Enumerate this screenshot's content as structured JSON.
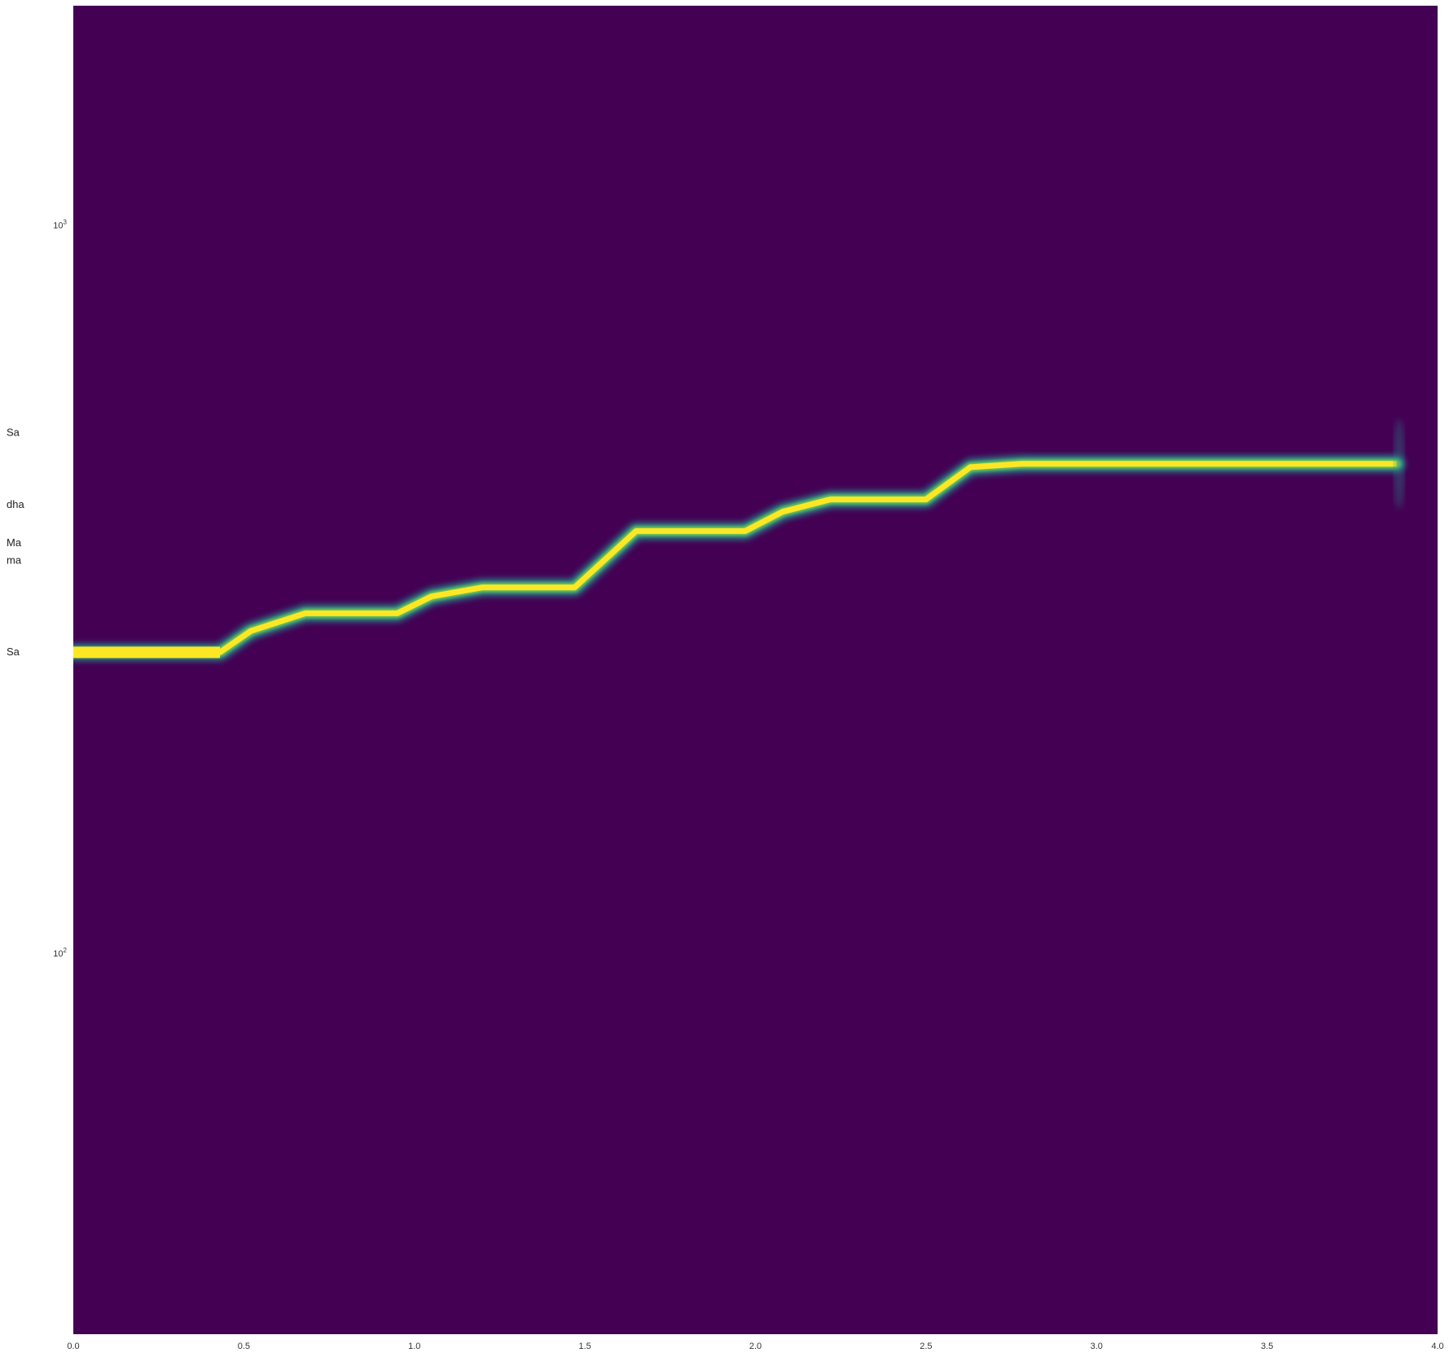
{
  "chart_data": {
    "type": "heatmap",
    "title": "",
    "xlabel": "",
    "ylabel": "",
    "xlim": [
      0.0,
      4.0
    ],
    "ylim": [
      30,
      2000
    ],
    "yscale": "log",
    "grid": false,
    "legend": "none",
    "colormap": "viridis",
    "colors": {
      "background": "#440154",
      "mid": "#21918c",
      "peak": "#fde725"
    },
    "x_ticks": [
      {
        "value": 0.0,
        "label": "0.0"
      },
      {
        "value": 0.5,
        "label": "0.5"
      },
      {
        "value": 1.0,
        "label": "1.0"
      },
      {
        "value": 1.5,
        "label": "1.5"
      },
      {
        "value": 2.0,
        "label": "2.0"
      },
      {
        "value": 2.5,
        "label": "2.5"
      },
      {
        "value": 3.0,
        "label": "3.0"
      },
      {
        "value": 3.5,
        "label": "3.5"
      },
      {
        "value": 4.0,
        "label": "4.0"
      }
    ],
    "y_ticks": [
      {
        "value": 100,
        "base": "10",
        "exp": "2"
      },
      {
        "value": 1000,
        "base": "10",
        "exp": "3"
      }
    ],
    "swara_labels": [
      {
        "label": "Sa",
        "frequency": 260
      },
      {
        "label": "ma",
        "frequency": 347
      },
      {
        "label": "Ma",
        "frequency": 367
      },
      {
        "label": "dha",
        "frequency": 414
      },
      {
        "label": "Sa",
        "frequency": 520
      }
    ],
    "pitch_track": {
      "x": [
        0.0,
        0.43,
        0.52,
        0.68,
        0.95,
        1.05,
        1.2,
        1.47,
        1.65,
        1.97,
        2.08,
        2.22,
        2.5,
        2.63,
        2.78,
        3.88
      ],
      "y": [
        259,
        259,
        277,
        293,
        293,
        309,
        318,
        318,
        380,
        380,
        404,
        420,
        420,
        465,
        470,
        470
      ]
    }
  }
}
